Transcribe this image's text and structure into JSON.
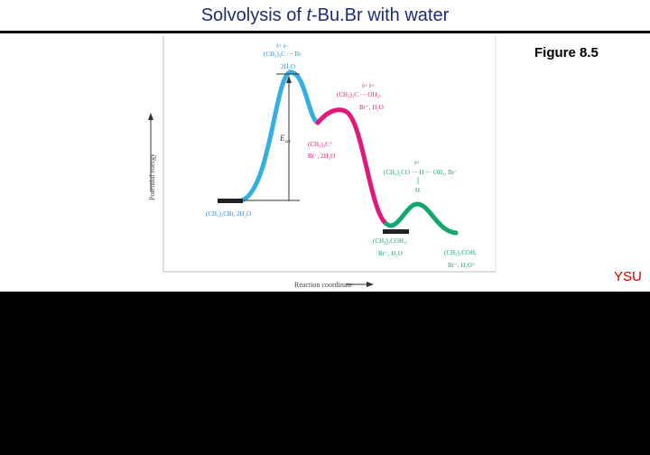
{
  "slide": {
    "title_prefix": "Solvolysis of ",
    "title_italic": "t",
    "title_suffix": "-Bu.Br with water",
    "figure_label": "Figure 8.5",
    "footer_mark": "YSU"
  },
  "diagram": {
    "y_axis_label": "Potential energy",
    "x_axis_label": "Reaction coordinate",
    "ea_label": "E",
    "ea_subscript": "act",
    "colors": {
      "step1": "#35aee0",
      "step2": "#e0197d",
      "step3": "#14a66c",
      "level": "#222222"
    },
    "labels": {
      "ts1_delta": "δ+        δ−",
      "ts1_formula": "(CH₃)₃C ··· Br",
      "ts1_water": "2H₂O",
      "ts2_delta": "δ+     δ+",
      "ts2_formula": "(CH₃)₃C ··· OH₂,",
      "ts2_extra": "Br⁻, H₂O",
      "int1_formula": "(CH₃)₃C⁺",
      "int1_extra": "Br⁻, 2H₂O",
      "ts3_delta": "δ+",
      "ts3_formula": "(CH₃)₂CO ··· H ··· OH₂, Br⁻",
      "ts3_h": "H",
      "reactant": "(CH₃)₃CBr, 2H₂O",
      "int2_formula": "(CH₃)₂COH₂,",
      "int2_extra": "Br⁻, H₂O",
      "product_formula": "(CH₃)₃COH,",
      "product_extra": "Br⁻, H₃O⁺"
    }
  }
}
